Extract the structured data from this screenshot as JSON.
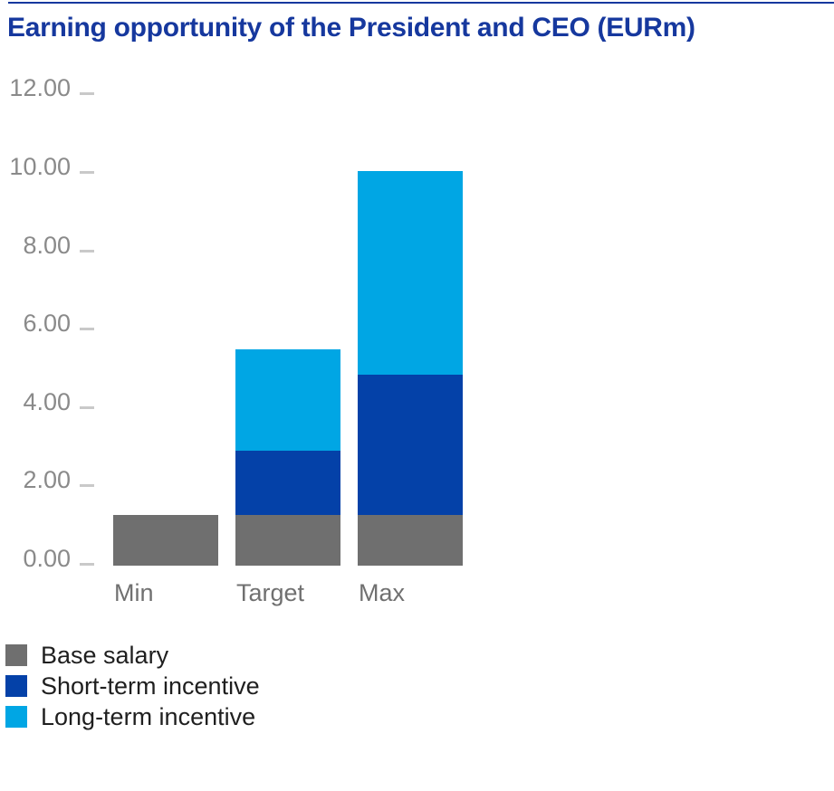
{
  "header": {
    "title": "Earning opportunity of the President and CEO (EURm)"
  },
  "chart_data": {
    "type": "bar",
    "stacked": true,
    "title": "Earning opportunity of the President and CEO (EURm)",
    "categories": [
      "Min",
      "Target",
      "Max"
    ],
    "series": [
      {
        "name": "Base salary",
        "color": "#6F6F6F",
        "values": [
          1.3,
          1.3,
          1.3
        ]
      },
      {
        "name": "Short-term incentive",
        "color": "#0441A8",
        "values": [
          0,
          1.625,
          3.575
        ]
      },
      {
        "name": "Long-term incentive",
        "color": "#00A6E4",
        "values": [
          0,
          2.6,
          5.2
        ]
      }
    ],
    "ylim": [
      0,
      12
    ],
    "ytick_values": [
      12,
      10,
      8,
      6,
      4,
      2,
      0
    ],
    "ytick_labels": [
      "12.00",
      "10.00",
      "8.00",
      "6.00",
      "4.00",
      "2.00",
      "0.00"
    ],
    "xlabel": "",
    "ylabel": "",
    "grid": false,
    "legend_position": "bottom-left"
  },
  "colors": {
    "background": "#FFFFFF",
    "title": "#16389E",
    "top_rule": "#16389E",
    "y_axis_text": "#8A8A8A",
    "x_axis_text": "#707070",
    "tick_mark": "#C9C9C9",
    "legend_text": "#1F1F1F"
  }
}
